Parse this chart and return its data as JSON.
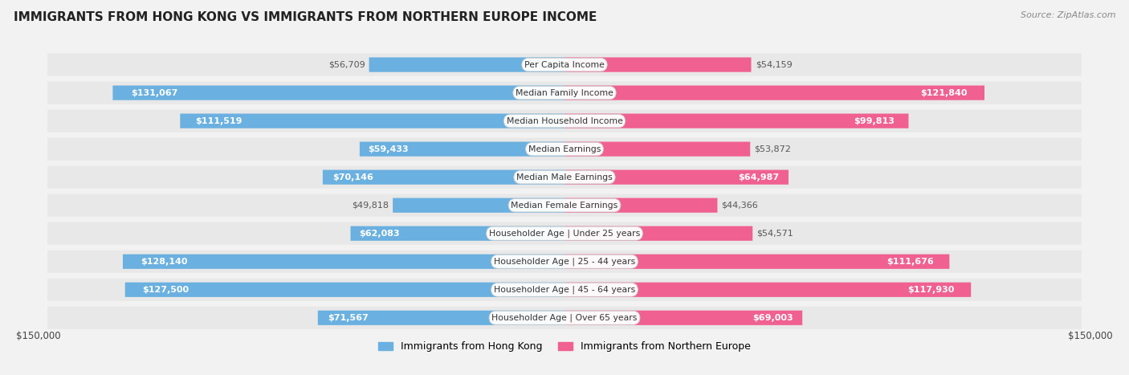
{
  "title": "IMMIGRANTS FROM HONG KONG VS IMMIGRANTS FROM NORTHERN EUROPE INCOME",
  "source": "Source: ZipAtlas.com",
  "categories": [
    "Per Capita Income",
    "Median Family Income",
    "Median Household Income",
    "Median Earnings",
    "Median Male Earnings",
    "Median Female Earnings",
    "Householder Age | Under 25 years",
    "Householder Age | 25 - 44 years",
    "Householder Age | 45 - 64 years",
    "Householder Age | Over 65 years"
  ],
  "hong_kong_values": [
    56709,
    131067,
    111519,
    59433,
    70146,
    49818,
    62083,
    128140,
    127500,
    71567
  ],
  "northern_europe_values": [
    54159,
    121840,
    99813,
    53872,
    64987,
    44366,
    54571,
    111676,
    117930,
    69003
  ],
  "hong_kong_labels": [
    "$56,709",
    "$131,067",
    "$111,519",
    "$59,433",
    "$70,146",
    "$49,818",
    "$62,083",
    "$128,140",
    "$127,500",
    "$71,567"
  ],
  "northern_europe_labels": [
    "$54,159",
    "$121,840",
    "$99,813",
    "$53,872",
    "$64,987",
    "$44,366",
    "$54,571",
    "$111,676",
    "$117,930",
    "$69,003"
  ],
  "hong_kong_color": "#6ab0e0",
  "northern_europe_color": "#f06090",
  "max_value": 150000,
  "bar_height": 0.52,
  "row_bg_color": "#e8e8e8",
  "legend_hk": "Immigrants from Hong Kong",
  "legend_ne": "Immigrants from Northern Europe",
  "axis_label_left": "$150,000",
  "axis_label_right": "$150,000",
  "inside_label_threshold": 0.38
}
